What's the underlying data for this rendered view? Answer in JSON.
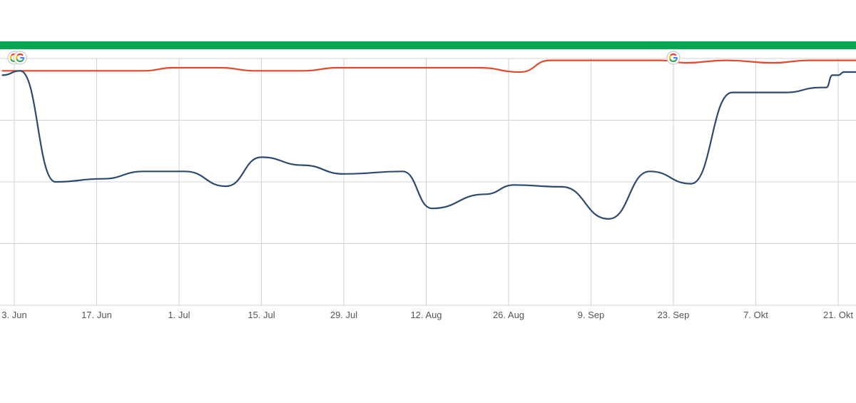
{
  "colors": {
    "top_bar": "#00a651",
    "grid": "#cfd3d8",
    "red_series": "#e04a2f",
    "blue_series": "#2c4a6e",
    "tick_text": "#555555",
    "google_blue": "#4285f4",
    "google_red": "#ea4335",
    "google_yellow": "#fbbc05",
    "google_green": "#34a853"
  },
  "chart_data": {
    "type": "line",
    "title": "",
    "xlabel": "",
    "ylabel": "",
    "x_ticks": [
      {
        "date": "2024-06-03",
        "label": "3. Jun"
      },
      {
        "date": "2024-06-17",
        "label": "17. Jun"
      },
      {
        "date": "2024-07-01",
        "label": "1. Jul"
      },
      {
        "date": "2024-07-15",
        "label": "15. Jul"
      },
      {
        "date": "2024-07-29",
        "label": "29. Jul"
      },
      {
        "date": "2024-08-12",
        "label": "12. Aug"
      },
      {
        "date": "2024-08-26",
        "label": "26. Aug"
      },
      {
        "date": "2024-09-09",
        "label": "9. Sep"
      },
      {
        "date": "2024-09-23",
        "label": "23. Sep"
      },
      {
        "date": "2024-10-07",
        "label": "7. Okt"
      },
      {
        "date": "2024-10-21",
        "label": "21. Okt"
      }
    ],
    "xlim": [
      "2024-06-01",
      "2024-10-24"
    ],
    "ylim": [
      0,
      4
    ],
    "y_gridlines": [
      0,
      1,
      2,
      3,
      4
    ],
    "y_tick_labels_visible": false,
    "grid": true,
    "legend": "none",
    "series": [
      {
        "color_key": "red_series",
        "points": [
          [
            "2024-06-01",
            3.8
          ],
          [
            "2024-06-25",
            3.8
          ],
          [
            "2024-06-30",
            3.85
          ],
          [
            "2024-07-08",
            3.85
          ],
          [
            "2024-07-14",
            3.8
          ],
          [
            "2024-07-22",
            3.8
          ],
          [
            "2024-07-28",
            3.85
          ],
          [
            "2024-08-21",
            3.85
          ],
          [
            "2024-08-28",
            3.78
          ],
          [
            "2024-09-02",
            3.97
          ],
          [
            "2024-09-21",
            3.97
          ],
          [
            "2024-09-25",
            3.93
          ],
          [
            "2024-10-02",
            3.97
          ],
          [
            "2024-10-10",
            3.93
          ],
          [
            "2024-10-16",
            3.97
          ],
          [
            "2024-10-24",
            3.97
          ]
        ]
      },
      {
        "color_key": "blue_series",
        "points": [
          [
            "2024-06-01",
            3.73
          ],
          [
            "2024-06-04",
            3.8
          ],
          [
            "2024-06-10",
            2.0
          ],
          [
            "2024-06-18",
            2.05
          ],
          [
            "2024-06-25",
            2.17
          ],
          [
            "2024-07-02",
            2.17
          ],
          [
            "2024-07-09",
            1.93
          ],
          [
            "2024-07-15",
            2.4
          ],
          [
            "2024-07-22",
            2.27
          ],
          [
            "2024-07-29",
            2.13
          ],
          [
            "2024-08-08",
            2.17
          ],
          [
            "2024-08-13",
            1.57
          ],
          [
            "2024-08-22",
            1.8
          ],
          [
            "2024-08-27",
            1.95
          ],
          [
            "2024-09-04",
            1.92
          ],
          [
            "2024-09-12",
            1.4
          ],
          [
            "2024-09-19",
            2.17
          ],
          [
            "2024-09-26",
            1.97
          ],
          [
            "2024-10-03",
            3.45
          ],
          [
            "2024-10-12",
            3.45
          ],
          [
            "2024-10-18",
            3.53
          ],
          [
            "2024-10-19",
            3.53
          ],
          [
            "2024-10-20",
            3.73
          ],
          [
            "2024-10-21",
            3.73
          ],
          [
            "2024-10-22",
            3.78
          ],
          [
            "2024-10-24",
            3.78
          ]
        ]
      }
    ],
    "event_markers": [
      {
        "date": "2024-06-03",
        "icon": "google-g-icon",
        "label": "G"
      },
      {
        "date": "2024-06-04",
        "icon": "google-g-icon",
        "label": "G"
      },
      {
        "date": "2024-09-23",
        "icon": "google-g-icon",
        "label": "G"
      }
    ]
  }
}
